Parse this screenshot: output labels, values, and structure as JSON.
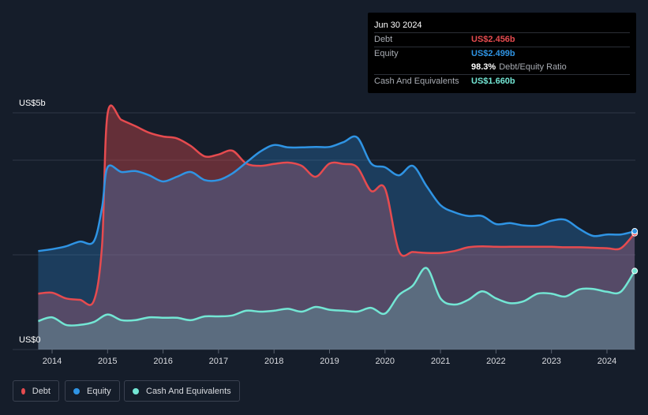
{
  "tooltip": {
    "date": "Jun 30 2024",
    "debt_label": "Debt",
    "debt_value": "US$2.456b",
    "equity_label": "Equity",
    "equity_value": "US$2.499b",
    "ratio_value": "98.3%",
    "ratio_label": "Debt/Equity Ratio",
    "cash_label": "Cash And Equivalents",
    "cash_value": "US$1.660b"
  },
  "colors": {
    "debt": "#e64b4f",
    "equity": "#2f94e4",
    "cash": "#73e6d4",
    "background": "#151d2a"
  },
  "legend": [
    {
      "label": "Debt",
      "color": "#e64b4f"
    },
    {
      "label": "Equity",
      "color": "#2f94e4"
    },
    {
      "label": "Cash And Equivalents",
      "color": "#73e6d4"
    }
  ],
  "chart_data": {
    "type": "area",
    "title": "",
    "xlabel": "",
    "ylabel": "",
    "y_top_label": "US$5b",
    "y_bottom_label": "US$0",
    "ylim": [
      0,
      5
    ],
    "xlim": [
      2013.5,
      2024.5
    ],
    "x_ticks": [
      "2014",
      "2015",
      "2016",
      "2017",
      "2018",
      "2019",
      "2020",
      "2021",
      "2022",
      "2023",
      "2024"
    ],
    "series": [
      {
        "name": "Debt",
        "color": "#e64b4f",
        "points": [
          [
            2013.75,
            1.18
          ],
          [
            2014.0,
            1.2
          ],
          [
            2014.25,
            1.08
          ],
          [
            2014.5,
            1.05
          ],
          [
            2014.75,
            1.02
          ],
          [
            2014.9,
            2.2
          ],
          [
            2015.0,
            4.98
          ],
          [
            2015.25,
            4.85
          ],
          [
            2015.5,
            4.72
          ],
          [
            2015.75,
            4.58
          ],
          [
            2016.0,
            4.5
          ],
          [
            2016.25,
            4.46
          ],
          [
            2016.5,
            4.3
          ],
          [
            2016.75,
            4.08
          ],
          [
            2017.0,
            4.12
          ],
          [
            2017.25,
            4.2
          ],
          [
            2017.5,
            3.93
          ],
          [
            2017.75,
            3.88
          ],
          [
            2018.0,
            3.92
          ],
          [
            2018.25,
            3.95
          ],
          [
            2018.5,
            3.88
          ],
          [
            2018.75,
            3.65
          ],
          [
            2019.0,
            3.93
          ],
          [
            2019.25,
            3.92
          ],
          [
            2019.5,
            3.85
          ],
          [
            2019.75,
            3.35
          ],
          [
            2020.0,
            3.4
          ],
          [
            2020.25,
            2.08
          ],
          [
            2020.5,
            2.06
          ],
          [
            2020.75,
            2.04
          ],
          [
            2021.0,
            2.04
          ],
          [
            2021.25,
            2.08
          ],
          [
            2021.5,
            2.16
          ],
          [
            2021.75,
            2.18
          ],
          [
            2022.0,
            2.17
          ],
          [
            2022.25,
            2.17
          ],
          [
            2022.5,
            2.17
          ],
          [
            2022.75,
            2.17
          ],
          [
            2023.0,
            2.17
          ],
          [
            2023.25,
            2.16
          ],
          [
            2023.5,
            2.16
          ],
          [
            2023.75,
            2.15
          ],
          [
            2024.0,
            2.14
          ],
          [
            2024.25,
            2.14
          ],
          [
            2024.5,
            2.456
          ]
        ]
      },
      {
        "name": "Equity",
        "color": "#2f94e4",
        "points": [
          [
            2013.75,
            2.08
          ],
          [
            2014.0,
            2.12
          ],
          [
            2014.25,
            2.18
          ],
          [
            2014.5,
            2.28
          ],
          [
            2014.75,
            2.28
          ],
          [
            2014.9,
            3.0
          ],
          [
            2015.0,
            3.85
          ],
          [
            2015.25,
            3.75
          ],
          [
            2015.5,
            3.77
          ],
          [
            2015.75,
            3.68
          ],
          [
            2016.0,
            3.55
          ],
          [
            2016.25,
            3.65
          ],
          [
            2016.5,
            3.75
          ],
          [
            2016.75,
            3.58
          ],
          [
            2017.0,
            3.58
          ],
          [
            2017.25,
            3.72
          ],
          [
            2017.5,
            3.95
          ],
          [
            2017.75,
            4.18
          ],
          [
            2018.0,
            4.32
          ],
          [
            2018.25,
            4.27
          ],
          [
            2018.5,
            4.27
          ],
          [
            2018.75,
            4.28
          ],
          [
            2019.0,
            4.28
          ],
          [
            2019.25,
            4.38
          ],
          [
            2019.5,
            4.48
          ],
          [
            2019.75,
            3.93
          ],
          [
            2020.0,
            3.85
          ],
          [
            2020.25,
            3.68
          ],
          [
            2020.5,
            3.88
          ],
          [
            2020.75,
            3.45
          ],
          [
            2021.0,
            3.05
          ],
          [
            2021.25,
            2.9
          ],
          [
            2021.5,
            2.82
          ],
          [
            2021.75,
            2.82
          ],
          [
            2022.0,
            2.65
          ],
          [
            2022.25,
            2.67
          ],
          [
            2022.5,
            2.62
          ],
          [
            2022.75,
            2.62
          ],
          [
            2023.0,
            2.72
          ],
          [
            2023.25,
            2.74
          ],
          [
            2023.5,
            2.55
          ],
          [
            2023.75,
            2.4
          ],
          [
            2024.0,
            2.43
          ],
          [
            2024.25,
            2.43
          ],
          [
            2024.5,
            2.499
          ]
        ]
      },
      {
        "name": "Cash And Equivalents",
        "color": "#73e6d4",
        "points": [
          [
            2013.75,
            0.6
          ],
          [
            2014.0,
            0.68
          ],
          [
            2014.25,
            0.52
          ],
          [
            2014.5,
            0.52
          ],
          [
            2014.75,
            0.58
          ],
          [
            2015.0,
            0.74
          ],
          [
            2015.25,
            0.62
          ],
          [
            2015.5,
            0.62
          ],
          [
            2015.75,
            0.68
          ],
          [
            2016.0,
            0.67
          ],
          [
            2016.25,
            0.67
          ],
          [
            2016.5,
            0.62
          ],
          [
            2016.75,
            0.7
          ],
          [
            2017.0,
            0.7
          ],
          [
            2017.25,
            0.72
          ],
          [
            2017.5,
            0.82
          ],
          [
            2017.75,
            0.8
          ],
          [
            2018.0,
            0.82
          ],
          [
            2018.25,
            0.86
          ],
          [
            2018.5,
            0.8
          ],
          [
            2018.75,
            0.9
          ],
          [
            2019.0,
            0.84
          ],
          [
            2019.25,
            0.82
          ],
          [
            2019.5,
            0.8
          ],
          [
            2019.75,
            0.88
          ],
          [
            2020.0,
            0.76
          ],
          [
            2020.25,
            1.15
          ],
          [
            2020.5,
            1.35
          ],
          [
            2020.75,
            1.72
          ],
          [
            2021.0,
            1.08
          ],
          [
            2021.25,
            0.95
          ],
          [
            2021.5,
            1.05
          ],
          [
            2021.75,
            1.23
          ],
          [
            2022.0,
            1.08
          ],
          [
            2022.25,
            0.98
          ],
          [
            2022.5,
            1.02
          ],
          [
            2022.75,
            1.18
          ],
          [
            2023.0,
            1.18
          ],
          [
            2023.25,
            1.12
          ],
          [
            2023.5,
            1.27
          ],
          [
            2023.75,
            1.28
          ],
          [
            2024.0,
            1.22
          ],
          [
            2024.25,
            1.22
          ],
          [
            2024.5,
            1.66
          ]
        ]
      }
    ],
    "grid": true,
    "legend_position": "bottom-left"
  }
}
